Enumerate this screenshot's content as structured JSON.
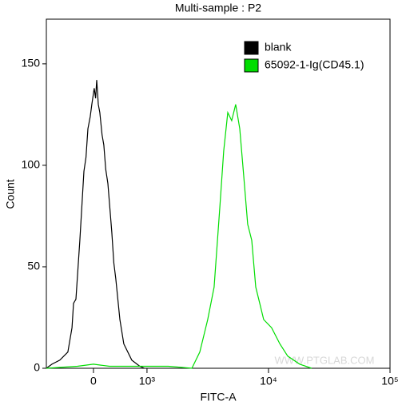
{
  "chart_data": {
    "type": "line",
    "title": "Multi-sample : P2",
    "x_label": "FITC-A",
    "y_label": "Count",
    "xscale": "biexponential",
    "xlim": [
      -880,
      100000
    ],
    "xticks": [
      0,
      {
        "value": 1000,
        "label": "10³"
      },
      {
        "value": 10000,
        "label": "10⁴"
      },
      {
        "value": 100000,
        "label": "10⁵"
      }
    ],
    "ylim": [
      0,
      172
    ],
    "yticks": [
      0,
      50,
      100,
      150
    ],
    "legend": "top-right",
    "watermark": "WWW.PTGLAB.COM",
    "series": [
      {
        "name": "blank",
        "color": "#000000",
        "x": [
          -880,
          -776,
          -627,
          -478,
          -400,
          -373,
          -328,
          -254,
          -179,
          -140,
          -104,
          -60,
          -30,
          15,
          40,
          60,
          90,
          119,
          160,
          194,
          230,
          269,
          343,
          380,
          418,
          493,
          567,
          716,
          866,
          950
        ],
        "values": [
          0,
          2,
          4,
          8,
          20,
          32,
          34,
          63,
          97,
          104,
          118,
          124,
          130,
          138,
          133,
          142,
          130,
          126,
          115,
          110,
          98,
          91,
          67,
          52,
          44,
          24,
          12,
          4,
          1,
          0
        ]
      },
      {
        "name": "65092-1-Ig(CD45.1)",
        "color": "#00dd00",
        "x": [
          -880,
          -300,
          0,
          300,
          700,
          1500,
          2340,
          2720,
          3160,
          3570,
          3970,
          4280,
          4620,
          4980,
          5370,
          5800,
          6250,
          6740,
          7280,
          7850,
          8470,
          9130,
          10600,
          12400,
          14400,
          18100,
          22600
        ],
        "values": [
          0,
          1,
          2,
          1,
          1,
          1,
          0,
          8,
          24,
          40,
          79,
          107,
          126,
          122,
          130,
          118,
          95,
          71,
          63,
          40,
          32,
          24,
          20,
          12,
          6,
          2,
          0
        ]
      }
    ]
  }
}
